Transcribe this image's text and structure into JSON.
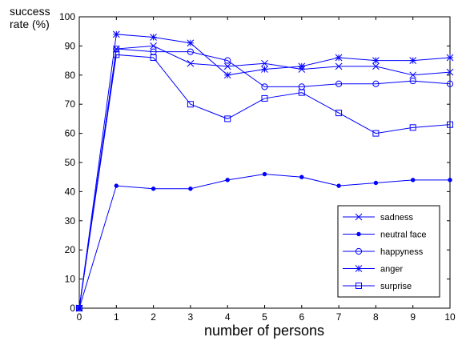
{
  "chart_data": {
    "type": "line",
    "xlabel": "number of persons",
    "ylabel_lines": [
      "success",
      "rate (%)"
    ],
    "x": [
      0,
      1,
      2,
      3,
      4,
      5,
      6,
      7,
      8,
      9,
      10
    ],
    "xlim": [
      0,
      10
    ],
    "ylim": [
      0,
      100
    ],
    "xticks": [
      "0",
      "1",
      "2",
      "3",
      "4",
      "5",
      "6",
      "7",
      "8",
      "9",
      "10"
    ],
    "yticks": [
      "0",
      "10",
      "20",
      "30",
      "40",
      "50",
      "60",
      "70",
      "80",
      "90",
      "100"
    ],
    "grid": false,
    "legend_position": "bottom-right",
    "line_color": "#0000ff",
    "series": [
      {
        "name": "sadness",
        "marker": "x",
        "values": [
          0,
          89,
          90,
          84,
          83,
          84,
          82,
          83,
          83,
          80,
          81
        ]
      },
      {
        "name": "neutral face",
        "marker": "dot",
        "values": [
          0,
          42,
          41,
          41,
          44,
          46,
          45,
          42,
          43,
          44,
          44
        ]
      },
      {
        "name": "happyness",
        "marker": "circle",
        "values": [
          0,
          89,
          88,
          88,
          85,
          76,
          76,
          77,
          77,
          78,
          77
        ]
      },
      {
        "name": "anger",
        "marker": "star",
        "values": [
          0,
          94,
          93,
          91,
          80,
          82,
          83,
          86,
          85,
          85,
          86
        ]
      },
      {
        "name": "surprise",
        "marker": "square",
        "values": [
          0,
          87,
          86,
          70,
          65,
          72,
          74,
          67,
          60,
          62,
          63
        ]
      }
    ]
  }
}
